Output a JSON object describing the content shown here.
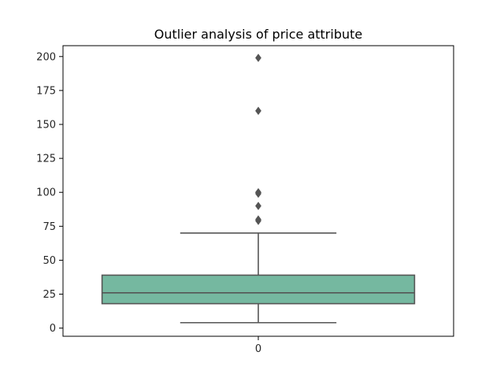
{
  "chart_data": {
    "type": "box",
    "title": "Outlier analysis of price attribute",
    "xlabel": "",
    "ylabel": "",
    "categories": [
      "0"
    ],
    "ylim": [
      -6,
      208
    ],
    "yticks": [
      0,
      25,
      50,
      75,
      100,
      125,
      150,
      175,
      200
    ],
    "xticks": [
      "0"
    ],
    "grid": false,
    "legend": "none",
    "colors": {
      "box_fill": "#75b8a0",
      "line": "#555555",
      "outlier": "#555555",
      "axis": "#000000"
    },
    "boxes": [
      {
        "category": "0",
        "whisker_low": 4,
        "q1": 18,
        "median": 26,
        "q3": 39,
        "whisker_high": 70,
        "outliers": [
          79,
          80,
          90,
          99,
          100,
          100,
          160,
          199
        ]
      }
    ]
  }
}
